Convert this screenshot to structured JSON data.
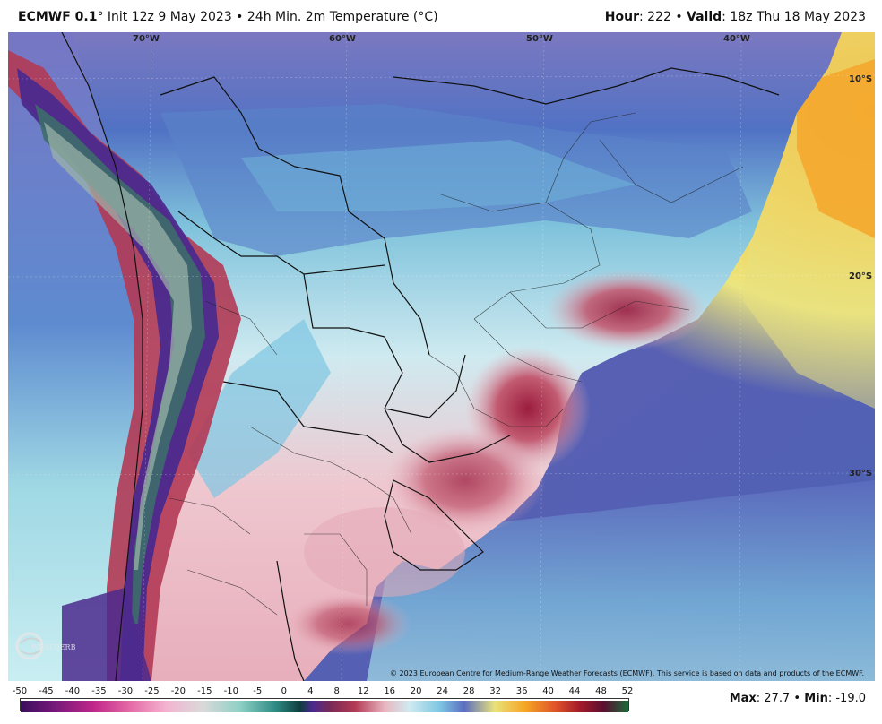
{
  "header": {
    "model": "ECMWF 0.1",
    "model_suffix": "° Init 12z 9 May 2023 • 24h Min. 2m Temperature (°C)",
    "hour_label": "Hour",
    "hour_value": ": 222 • ",
    "valid_label": "Valid",
    "valid_value": ": 18z Thu 18 May 2023"
  },
  "map": {
    "longitude_labels": [
      "70°W",
      "60°W",
      "50°W",
      "40°W"
    ],
    "latitude_labels": [
      "10°S",
      "20°S",
      "30°S"
    ],
    "copyright": "© 2023 European Centre for Medium-Range Weather Forecasts (ECMWF). This service is based on data and products of the ECMWF.",
    "logo_text": "WEATHERBELL",
    "colors": {
      "ocean_warm": "#f5a623",
      "ocean_yellow": "#e9e27a",
      "ocean_cool": "#6d6fb8",
      "land_cool": "#5f86c9",
      "land_mild": "#a7dbe6",
      "land_pink": "#e8b7c1",
      "land_warm": "#b33a57",
      "andes_cold": "#4a2a8c"
    }
  },
  "legend": {
    "tick_labels": [
      "-50",
      "-45",
      "-40",
      "-35",
      "-30",
      "-25",
      "-20",
      "-15",
      "-10",
      "-5",
      "0",
      "4",
      "8",
      "12",
      "16",
      "20",
      "24",
      "28",
      "32",
      "36",
      "40",
      "44",
      "48",
      "52"
    ],
    "max_label": "Max",
    "max_value": ": 27.7 • ",
    "min_label": "Min",
    "min_value": ": -19.0"
  }
}
